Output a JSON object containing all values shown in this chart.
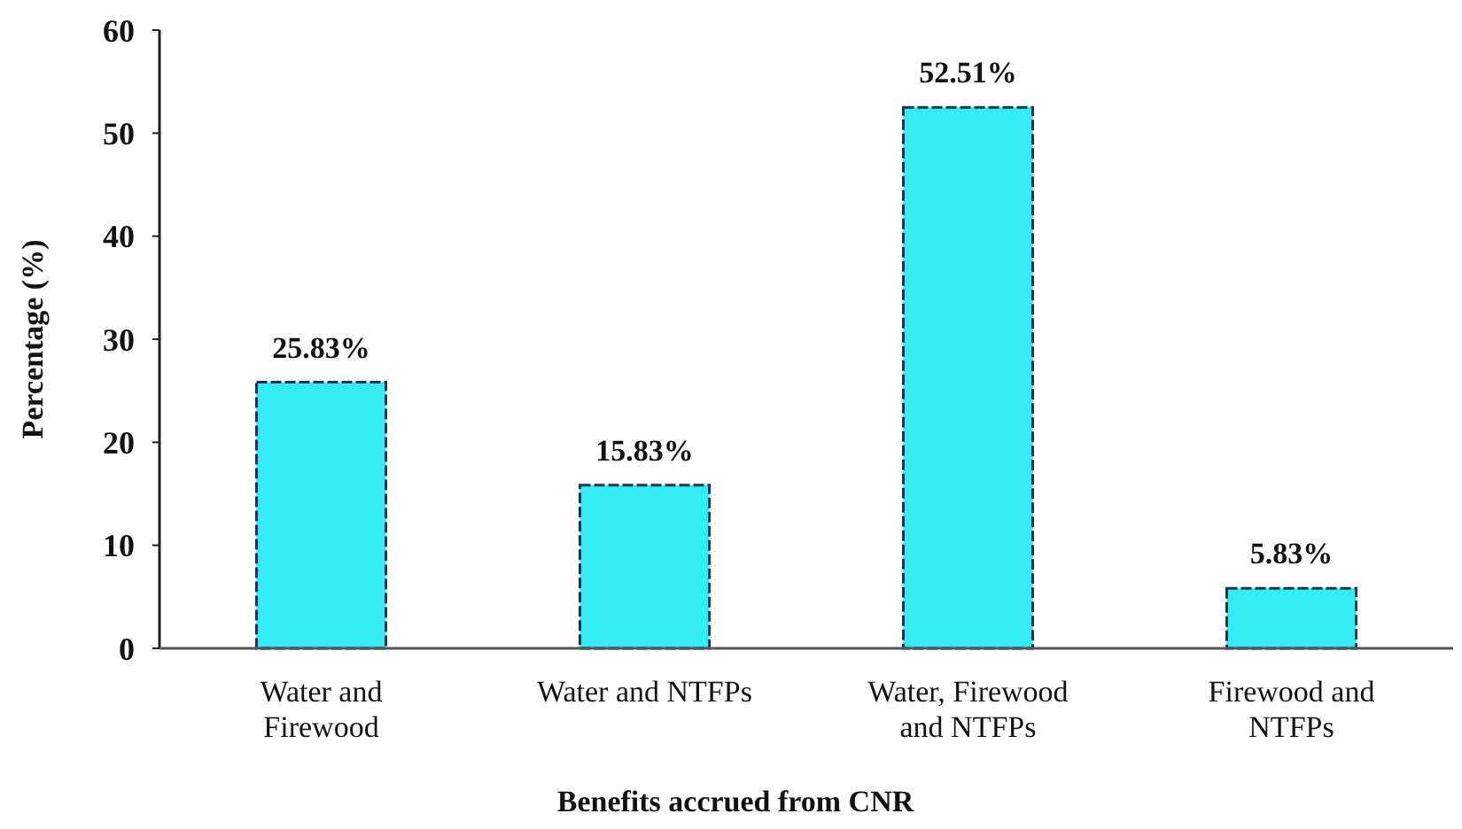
{
  "chart_data": {
    "type": "bar",
    "xlabel": "Benefits accrued from CNR",
    "ylabel": "Percentage (%)",
    "categories": [
      "Water and Firewood",
      "Water and NTFPs",
      "Water, Firewood and NTFPs",
      "Firewood and NTFPs"
    ],
    "values": [
      25.83,
      15.83,
      52.51,
      5.83
    ],
    "value_labels": [
      "25.83%",
      "15.83%",
      "52.51%",
      "5.83%"
    ],
    "color": "#33ecf4",
    "ylim": [
      0,
      60
    ],
    "yticks": [
      0,
      10,
      20,
      30,
      40,
      50,
      60
    ]
  }
}
